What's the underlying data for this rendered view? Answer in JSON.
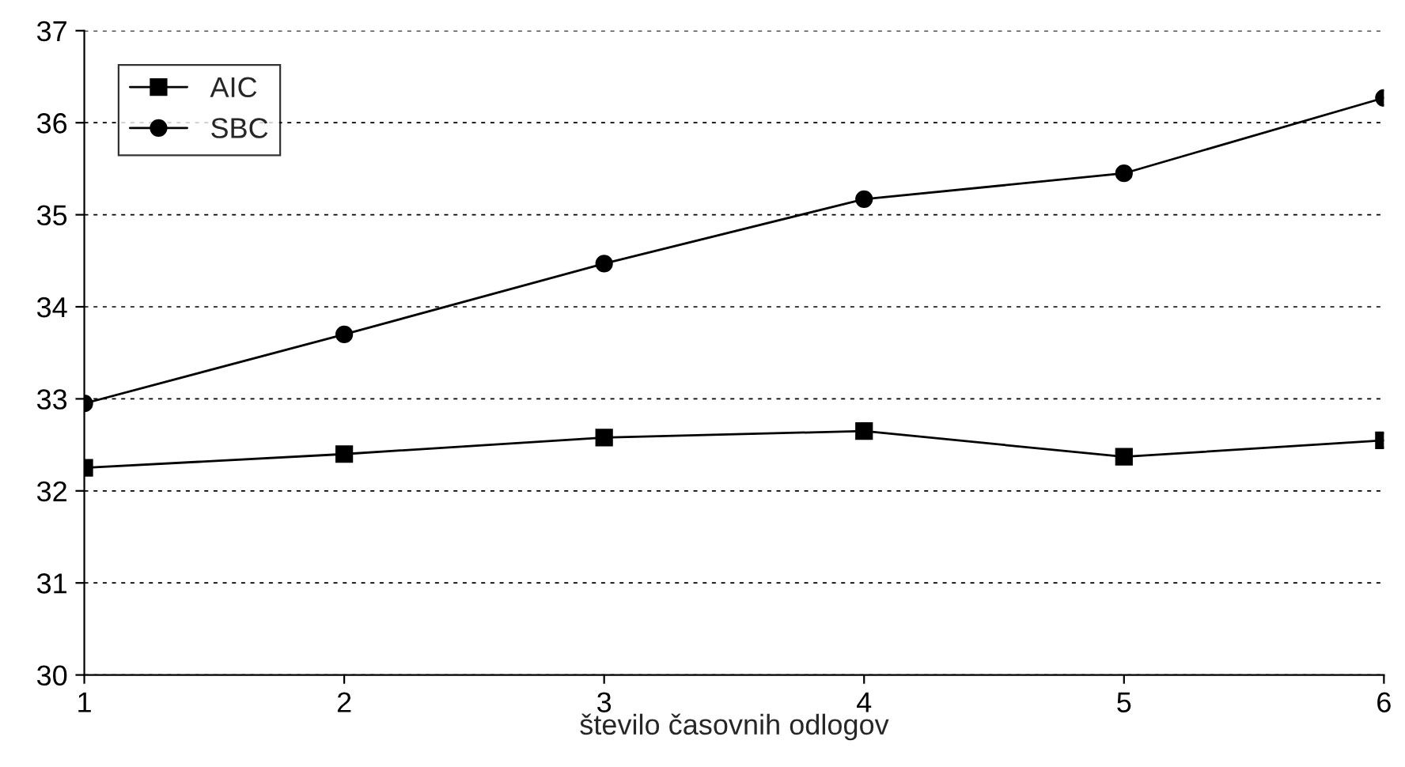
{
  "chart_data": {
    "type": "line",
    "xlabel": "število časovnih odlogov",
    "x": [
      1,
      2,
      3,
      4,
      5,
      6
    ],
    "series": [
      {
        "name": "AIC",
        "color": "#000000",
        "marker": "square",
        "values": [
          32.25,
          32.4,
          32.58,
          32.65,
          32.37,
          32.55
        ]
      },
      {
        "name": "SBC",
        "color": "#000000",
        "marker": "circle",
        "values": [
          32.95,
          33.7,
          34.47,
          35.17,
          35.45,
          36.27
        ]
      }
    ],
    "xlim": [
      1,
      6
    ],
    "xticks": [
      1,
      2,
      3,
      4,
      5,
      6
    ],
    "ylim": [
      30,
      37
    ],
    "yticks": [
      30,
      31,
      32,
      33,
      34,
      35,
      36,
      37
    ],
    "grid": "y",
    "legend": "top left",
    "line_style": "solid"
  }
}
